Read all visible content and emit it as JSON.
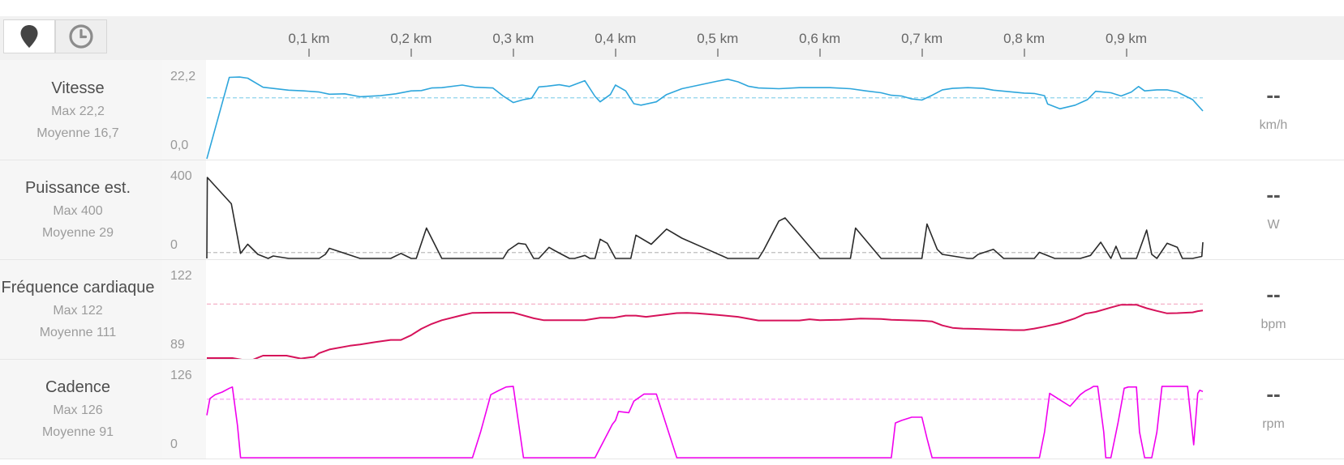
{
  "toolbar": {
    "distance_icon": "map-pin-icon",
    "time_icon": "clock-icon"
  },
  "colors": {
    "speed": "#2ea6dc",
    "power": "#2a2a2a",
    "heart": "#d6125a",
    "cadence": "#f000ee",
    "avg_speed": "#8fd4ec",
    "avg_power": "#bdbdbd",
    "avg_heart": "#f2a7c0",
    "avg_cadence": "#f7a3f3"
  },
  "chart_data": {
    "type": "line",
    "x_axis": {
      "unit": "km",
      "range": [
        0,
        0.975
      ],
      "ticks": [
        {
          "value": 0.1,
          "label": "0,1 km"
        },
        {
          "value": 0.2,
          "label": "0,2 km"
        },
        {
          "value": 0.3,
          "label": "0,3 km"
        },
        {
          "value": 0.4,
          "label": "0,4 km"
        },
        {
          "value": 0.5,
          "label": "0,5 km"
        },
        {
          "value": 0.6,
          "label": "0,6 km"
        },
        {
          "value": 0.7,
          "label": "0,7 km"
        },
        {
          "value": 0.8,
          "label": "0,8 km"
        },
        {
          "value": 0.9,
          "label": "0,9 km"
        }
      ]
    },
    "panels": [
      {
        "key": "speed",
        "name": "Vitesse",
        "max_label": "Max 22,2",
        "avg_label": "Moyenne 16,7",
        "current_value": "--",
        "unit": "km/h",
        "y_top_label": "22,2",
        "y_bottom_label": "0,0",
        "y_range": [
          0,
          22.2
        ],
        "average": 16.7,
        "points": [
          [
            0,
            0
          ],
          [
            0.022,
            22.3
          ],
          [
            0.032,
            22.4
          ],
          [
            0.04,
            22.1
          ],
          [
            0.055,
            19.6
          ],
          [
            0.08,
            18.8
          ],
          [
            0.095,
            18.6
          ],
          [
            0.11,
            18.3
          ],
          [
            0.12,
            17.7
          ],
          [
            0.135,
            17.8
          ],
          [
            0.15,
            17
          ],
          [
            0.17,
            17.3
          ],
          [
            0.185,
            17.8
          ],
          [
            0.2,
            18.6
          ],
          [
            0.21,
            18.7
          ],
          [
            0.22,
            19.4
          ],
          [
            0.23,
            19.5
          ],
          [
            0.25,
            20.2
          ],
          [
            0.262,
            19.6
          ],
          [
            0.28,
            19.4
          ],
          [
            0.29,
            17.2
          ],
          [
            0.3,
            15.4
          ],
          [
            0.31,
            16.2
          ],
          [
            0.318,
            16.6
          ],
          [
            0.325,
            19.7
          ],
          [
            0.333,
            19.9
          ],
          [
            0.345,
            20.3
          ],
          [
            0.355,
            19.8
          ],
          [
            0.37,
            21.4
          ],
          [
            0.38,
            17.1
          ],
          [
            0.385,
            15.6
          ],
          [
            0.395,
            17.6
          ],
          [
            0.4,
            20.2
          ],
          [
            0.41,
            18.6
          ],
          [
            0.418,
            15.1
          ],
          [
            0.425,
            14.7
          ],
          [
            0.44,
            15.6
          ],
          [
            0.45,
            17.6
          ],
          [
            0.465,
            19.2
          ],
          [
            0.5,
            21.3
          ],
          [
            0.51,
            21.8
          ],
          [
            0.52,
            21.1
          ],
          [
            0.53,
            19.9
          ],
          [
            0.54,
            19.4
          ],
          [
            0.56,
            19.2
          ],
          [
            0.58,
            19.5
          ],
          [
            0.61,
            19.5
          ],
          [
            0.63,
            19.2
          ],
          [
            0.645,
            18.6
          ],
          [
            0.66,
            18.1
          ],
          [
            0.67,
            17.4
          ],
          [
            0.68,
            17.2
          ],
          [
            0.69,
            16.4
          ],
          [
            0.7,
            16.1
          ],
          [
            0.71,
            17.4
          ],
          [
            0.72,
            18.9
          ],
          [
            0.73,
            19.3
          ],
          [
            0.745,
            19.5
          ],
          [
            0.76,
            19.3
          ],
          [
            0.77,
            18.8
          ],
          [
            0.8,
            18
          ],
          [
            0.81,
            17.9
          ],
          [
            0.82,
            17.3
          ],
          [
            0.823,
            15
          ],
          [
            0.835,
            13.7
          ],
          [
            0.85,
            14.7
          ],
          [
            0.862,
            16.2
          ],
          [
            0.87,
            18.5
          ],
          [
            0.885,
            18.1
          ],
          [
            0.895,
            17.2
          ],
          [
            0.905,
            18.3
          ],
          [
            0.912,
            19.8
          ],
          [
            0.918,
            18.6
          ],
          [
            0.93,
            18.9
          ],
          [
            0.94,
            18.9
          ],
          [
            0.95,
            18.3
          ],
          [
            0.965,
            16.2
          ],
          [
            0.975,
            13.1
          ]
        ]
      },
      {
        "key": "power",
        "name": "Puissance est.",
        "max_label": "Max 400",
        "avg_label": "Moyenne 29",
        "current_value": "--",
        "unit": "W",
        "y_top_label": "400",
        "y_bottom_label": "0",
        "y_range": [
          0,
          400
        ],
        "average": 29,
        "points": [
          [
            0,
            0
          ],
          [
            0.0005,
            400
          ],
          [
            0.024,
            270
          ],
          [
            0.033,
            25
          ],
          [
            0.04,
            70
          ],
          [
            0.05,
            20
          ],
          [
            0.06,
            0
          ],
          [
            0.065,
            12
          ],
          [
            0.08,
            0
          ],
          [
            0.11,
            0
          ],
          [
            0.116,
            20
          ],
          [
            0.12,
            50
          ],
          [
            0.132,
            30
          ],
          [
            0.15,
            0
          ],
          [
            0.18,
            0
          ],
          [
            0.19,
            25
          ],
          [
            0.2,
            0
          ],
          [
            0.205,
            0
          ],
          [
            0.215,
            150
          ],
          [
            0.23,
            0
          ],
          [
            0.29,
            0
          ],
          [
            0.295,
            40
          ],
          [
            0.305,
            75
          ],
          [
            0.312,
            70
          ],
          [
            0.32,
            0
          ],
          [
            0.325,
            0
          ],
          [
            0.335,
            55
          ],
          [
            0.34,
            40
          ],
          [
            0.355,
            0
          ],
          [
            0.36,
            0
          ],
          [
            0.37,
            15
          ],
          [
            0.375,
            0
          ],
          [
            0.38,
            0
          ],
          [
            0.385,
            95
          ],
          [
            0.392,
            75
          ],
          [
            0.4,
            0
          ],
          [
            0.415,
            0
          ],
          [
            0.42,
            115
          ],
          [
            0.435,
            70
          ],
          [
            0.45,
            145
          ],
          [
            0.465,
            100
          ],
          [
            0.49,
            45
          ],
          [
            0.51,
            0
          ],
          [
            0.54,
            0
          ],
          [
            0.545,
            40
          ],
          [
            0.56,
            185
          ],
          [
            0.566,
            200
          ],
          [
            0.6,
            0
          ],
          [
            0.63,
            0
          ],
          [
            0.635,
            150
          ],
          [
            0.66,
            0
          ],
          [
            0.7,
            0
          ],
          [
            0.705,
            170
          ],
          [
            0.715,
            45
          ],
          [
            0.72,
            20
          ],
          [
            0.745,
            0
          ],
          [
            0.75,
            0
          ],
          [
            0.755,
            20
          ],
          [
            0.77,
            45
          ],
          [
            0.78,
            0
          ],
          [
            0.81,
            0
          ],
          [
            0.815,
            30
          ],
          [
            0.83,
            0
          ],
          [
            0.855,
            0
          ],
          [
            0.865,
            15
          ],
          [
            0.875,
            80
          ],
          [
            0.885,
            0
          ],
          [
            0.89,
            60
          ],
          [
            0.895,
            0
          ],
          [
            0.91,
            0
          ],
          [
            0.92,
            140
          ],
          [
            0.925,
            20
          ],
          [
            0.93,
            0
          ],
          [
            0.94,
            75
          ],
          [
            0.95,
            55
          ],
          [
            0.955,
            0
          ],
          [
            0.965,
            0
          ],
          [
            0.974,
            10
          ],
          [
            0.975,
            80
          ]
        ]
      },
      {
        "key": "heart",
        "name": "Fréquence cardiaque",
        "max_label": "Max 122",
        "avg_label": "Moyenne 111",
        "current_value": "--",
        "unit": "bpm",
        "y_top_label": "122",
        "y_bottom_label": "89",
        "y_range": [
          89,
          122
        ],
        "average": 111,
        "points": [
          [
            0,
            89
          ],
          [
            0.025,
            89
          ],
          [
            0.035,
            88.3
          ],
          [
            0.045,
            88.3
          ],
          [
            0.055,
            90
          ],
          [
            0.078,
            90
          ],
          [
            0.092,
            88.8
          ],
          [
            0.105,
            89.5
          ],
          [
            0.11,
            91
          ],
          [
            0.12,
            92.5
          ],
          [
            0.14,
            94
          ],
          [
            0.15,
            94.5
          ],
          [
            0.165,
            95.5
          ],
          [
            0.18,
            96.4
          ],
          [
            0.19,
            96.4
          ],
          [
            0.2,
            98.3
          ],
          [
            0.21,
            100.9
          ],
          [
            0.22,
            102.9
          ],
          [
            0.23,
            104.4
          ],
          [
            0.25,
            106.5
          ],
          [
            0.26,
            107.4
          ],
          [
            0.28,
            107.5
          ],
          [
            0.3,
            107.5
          ],
          [
            0.32,
            105.2
          ],
          [
            0.33,
            104.4
          ],
          [
            0.355,
            104.4
          ],
          [
            0.37,
            104.4
          ],
          [
            0.385,
            105.4
          ],
          [
            0.398,
            105.4
          ],
          [
            0.41,
            106.3
          ],
          [
            0.42,
            106.3
          ],
          [
            0.43,
            105.8
          ],
          [
            0.46,
            107.3
          ],
          [
            0.47,
            107.4
          ],
          [
            0.48,
            107.2
          ],
          [
            0.5,
            106.6
          ],
          [
            0.52,
            105.8
          ],
          [
            0.54,
            104.3
          ],
          [
            0.555,
            104.3
          ],
          [
            0.58,
            104.3
          ],
          [
            0.59,
            104.8
          ],
          [
            0.6,
            104.4
          ],
          [
            0.62,
            104.6
          ],
          [
            0.64,
            105.1
          ],
          [
            0.66,
            104.9
          ],
          [
            0.67,
            104.6
          ],
          [
            0.7,
            104.2
          ],
          [
            0.71,
            103.9
          ],
          [
            0.72,
            102.3
          ],
          [
            0.73,
            101.3
          ],
          [
            0.74,
            101
          ],
          [
            0.75,
            100.9
          ],
          [
            0.77,
            100.6
          ],
          [
            0.79,
            100.4
          ],
          [
            0.8,
            100.4
          ],
          [
            0.81,
            101
          ],
          [
            0.82,
            101.8
          ],
          [
            0.835,
            103.2
          ],
          [
            0.85,
            105.2
          ],
          [
            0.86,
            107.1
          ],
          [
            0.87,
            107.8
          ],
          [
            0.885,
            109.6
          ],
          [
            0.895,
            110.7
          ],
          [
            0.91,
            110.7
          ],
          [
            0.92,
            109.3
          ],
          [
            0.93,
            108.2
          ],
          [
            0.94,
            107.2
          ],
          [
            0.95,
            107.3
          ],
          [
            0.965,
            107.6
          ],
          [
            0.97,
            108.1
          ],
          [
            0.975,
            108.4
          ]
        ]
      },
      {
        "key": "cadence",
        "name": "Cadence",
        "max_label": "Max 126",
        "avg_label": "Moyenne 91",
        "current_value": "--",
        "unit": "rpm",
        "y_top_label": "126",
        "y_bottom_label": "0",
        "y_range": [
          0,
          126
        ],
        "average": 91,
        "points": [
          [
            0,
            66
          ],
          [
            0.003,
            92
          ],
          [
            0.008,
            98
          ],
          [
            0.015,
            102
          ],
          [
            0.022,
            108
          ],
          [
            0.025,
            110
          ],
          [
            0.03,
            50
          ],
          [
            0.033,
            0
          ],
          [
            0.26,
            0
          ],
          [
            0.268,
            40
          ],
          [
            0.278,
            98
          ],
          [
            0.285,
            104
          ],
          [
            0.293,
            110
          ],
          [
            0.3,
            111
          ],
          [
            0.31,
            0
          ],
          [
            0.36,
            0
          ],
          [
            0.38,
            0
          ],
          [
            0.397,
            52
          ],
          [
            0.4,
            58
          ],
          [
            0.403,
            72
          ],
          [
            0.408,
            71
          ],
          [
            0.413,
            70
          ],
          [
            0.418,
            88
          ],
          [
            0.428,
            99
          ],
          [
            0.44,
            99
          ],
          [
            0.46,
            0
          ],
          [
            0.67,
            0
          ],
          [
            0.674,
            54
          ],
          [
            0.68,
            58
          ],
          [
            0.69,
            63
          ],
          [
            0.7,
            63
          ],
          [
            0.705,
            30
          ],
          [
            0.71,
            0
          ],
          [
            0.815,
            0
          ],
          [
            0.82,
            40
          ],
          [
            0.825,
            100
          ],
          [
            0.835,
            90
          ],
          [
            0.845,
            80
          ],
          [
            0.855,
            98
          ],
          [
            0.86,
            104
          ],
          [
            0.865,
            108
          ],
          [
            0.868,
            111
          ],
          [
            0.872,
            111
          ],
          [
            0.878,
            40
          ],
          [
            0.88,
            0
          ],
          [
            0.885,
            0
          ],
          [
            0.892,
            55
          ],
          [
            0.898,
            108
          ],
          [
            0.902,
            110
          ],
          [
            0.91,
            110
          ],
          [
            0.913,
            40
          ],
          [
            0.918,
            0
          ],
          [
            0.925,
            0
          ],
          [
            0.93,
            40
          ],
          [
            0.935,
            111
          ],
          [
            0.945,
            111
          ],
          [
            0.955,
            111
          ],
          [
            0.96,
            111
          ],
          [
            0.966,
            20
          ],
          [
            0.97,
            100
          ],
          [
            0.972,
            105
          ],
          [
            0.975,
            103
          ]
        ]
      }
    ]
  }
}
